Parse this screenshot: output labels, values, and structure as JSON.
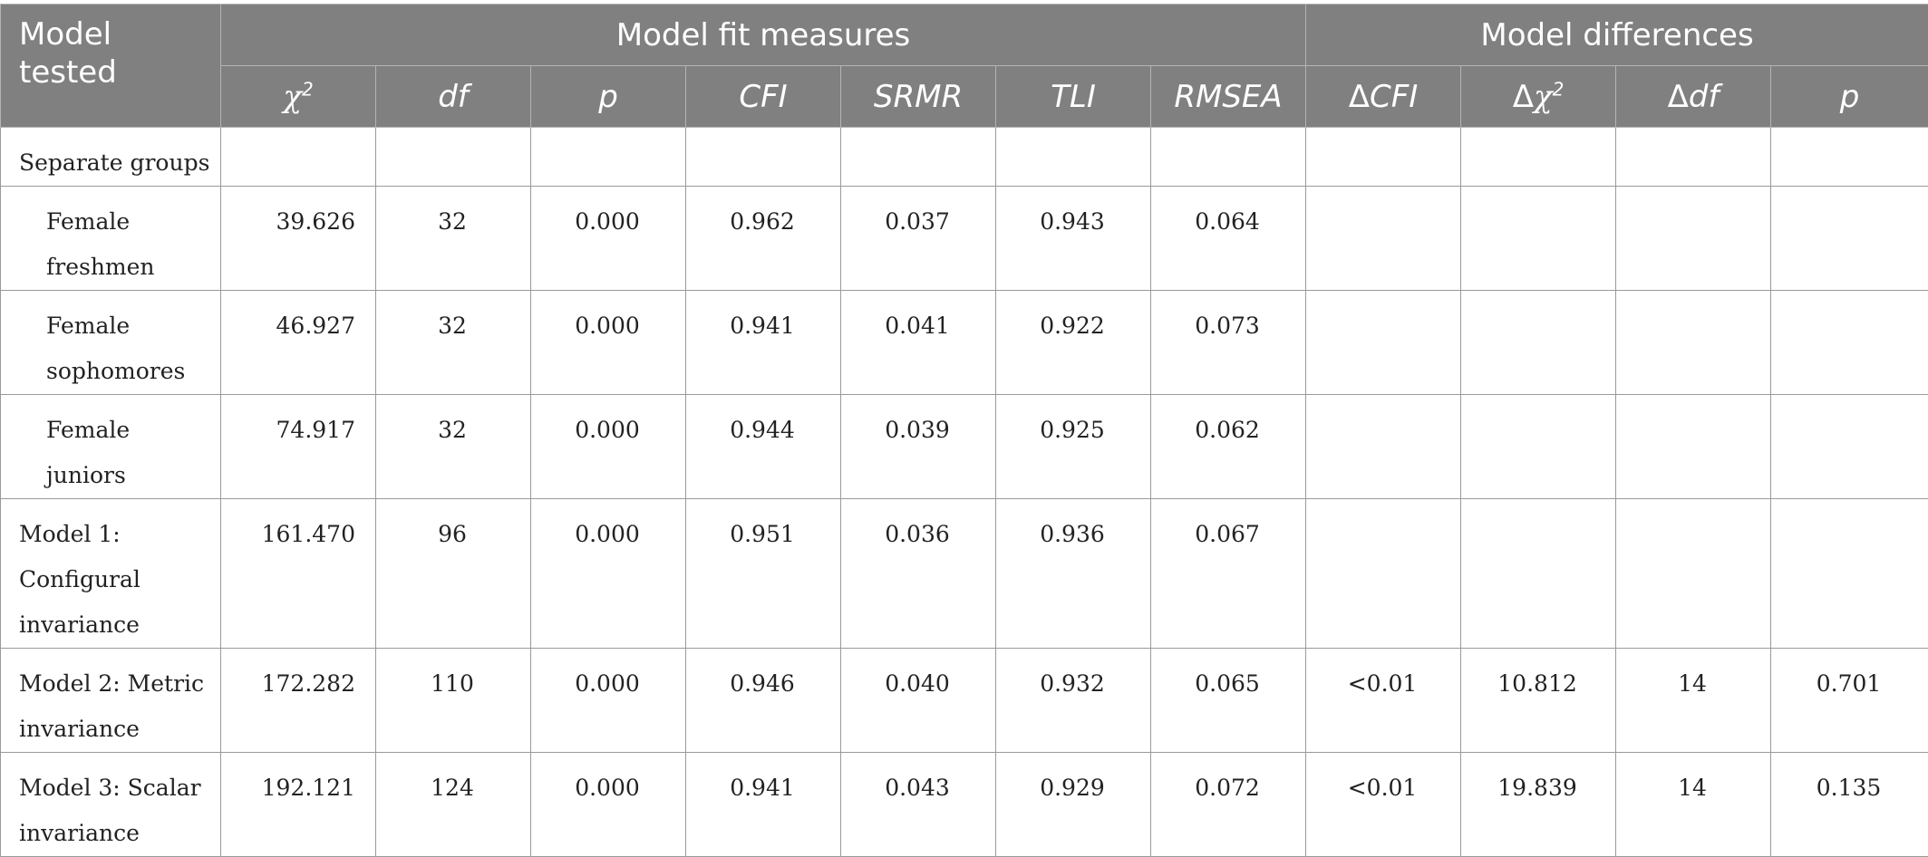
{
  "header": {
    "model_tested": "Model tested",
    "group_fit": "Model fit measures",
    "group_diff": "Model differences",
    "chi_symbol": "χ",
    "chi_sup": "2",
    "df": "df",
    "p": "p",
    "cfi": "CFI",
    "srmr": "SRMR",
    "tli": "TLI",
    "rmsea": "RMSEA",
    "delta": "Δ",
    "dcfi": "CFI",
    "dchi_symbol": "χ",
    "dchi_sup": "2",
    "ddf": "df",
    "p2": "p"
  },
  "rows": [
    {
      "label": "Separate groups",
      "chi2": "",
      "df": "",
      "p": "",
      "cfi": "",
      "srmr": "",
      "tli": "",
      "rmsea": "",
      "dcfi": "",
      "dchi2": "",
      "ddf": "",
      "dp": ""
    },
    {
      "label": "Female freshmen",
      "chi2": "39.626",
      "df": "32",
      "p": "0.000",
      "cfi": "0.962",
      "srmr": "0.037",
      "tli": "0.943",
      "rmsea": "0.064",
      "dcfi": "",
      "dchi2": "",
      "ddf": "",
      "dp": ""
    },
    {
      "label": "Female sophomores",
      "chi2": "46.927",
      "df": "32",
      "p": "0.000",
      "cfi": "0.941",
      "srmr": "0.041",
      "tli": "0.922",
      "rmsea": "0.073",
      "dcfi": "",
      "dchi2": "",
      "ddf": "",
      "dp": ""
    },
    {
      "label": "Female juniors",
      "chi2": "74.917",
      "df": "32",
      "p": "0.000",
      "cfi": "0.944",
      "srmr": "0.039",
      "tli": "0.925",
      "rmsea": "0.062",
      "dcfi": "",
      "dchi2": "",
      "ddf": "",
      "dp": ""
    },
    {
      "label": "Model 1: Configural invariance",
      "chi2": "161.470",
      "df": "96",
      "p": "0.000",
      "cfi": "0.951",
      "srmr": "0.036",
      "tli": "0.936",
      "rmsea": "0.067",
      "dcfi": "",
      "dchi2": "",
      "ddf": "",
      "dp": ""
    },
    {
      "label": "Model 2: Metric invariance",
      "chi2": "172.282",
      "df": "110",
      "p": "0.000",
      "cfi": "0.946",
      "srmr": "0.040",
      "tli": "0.932",
      "rmsea": "0.065",
      "dcfi": "<0.01",
      "dchi2": "10.812",
      "ddf": "14",
      "dp": "0.701"
    },
    {
      "label": "Model 3: Scalar invariance",
      "chi2": "192.121",
      "df": "124",
      "p": "0.000",
      "cfi": "0.941",
      "srmr": "0.043",
      "tli": "0.929",
      "rmsea": "0.072",
      "dcfi": "<0.01",
      "dchi2": "19.839",
      "ddf": "14",
      "dp": "0.135"
    }
  ],
  "colors": {
    "header_bg": "#808080",
    "header_text": "#ffffff",
    "grid": "#9a9a9a"
  }
}
